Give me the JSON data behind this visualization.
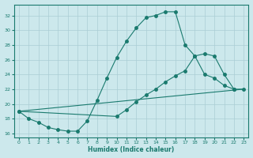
{
  "background_color": "#cce8ec",
  "grid_color": "#aacdd4",
  "line_color": "#1a7a6e",
  "xlabel": "Humidex (Indice chaleur)",
  "ylim": [
    15.5,
    33.5
  ],
  "xlim": [
    -0.5,
    23.5
  ],
  "yticks": [
    16,
    18,
    20,
    22,
    24,
    26,
    28,
    30,
    32
  ],
  "xticks": [
    0,
    1,
    2,
    3,
    4,
    5,
    6,
    7,
    8,
    9,
    10,
    11,
    12,
    13,
    14,
    15,
    16,
    17,
    18,
    19,
    20,
    21,
    22,
    23
  ],
  "curve1_x": [
    0,
    1,
    2,
    3,
    4,
    5,
    6,
    7,
    8,
    9,
    10,
    11,
    12,
    13,
    14,
    15,
    16,
    17,
    18,
    19,
    20,
    21,
    22
  ],
  "curve1_y": [
    19.0,
    18.0,
    17.5,
    16.8,
    16.5,
    16.3,
    16.3,
    17.7,
    20.5,
    23.5,
    26.3,
    28.5,
    30.3,
    31.7,
    32.0,
    32.5,
    32.5,
    28.0,
    26.5,
    24.0,
    23.5,
    22.5,
    22.0
  ],
  "curve2_x": [
    0,
    10,
    11,
    12,
    13,
    14,
    15,
    16,
    17,
    18,
    19,
    20,
    21,
    22,
    23
  ],
  "curve2_y": [
    19.0,
    18.3,
    19.2,
    20.3,
    21.2,
    22.0,
    23.0,
    23.8,
    24.5,
    26.5,
    26.8,
    26.5,
    24.0,
    22.0,
    22.0
  ],
  "curve3_x": [
    0,
    23
  ],
  "curve3_y": [
    19.0,
    22.0
  ]
}
